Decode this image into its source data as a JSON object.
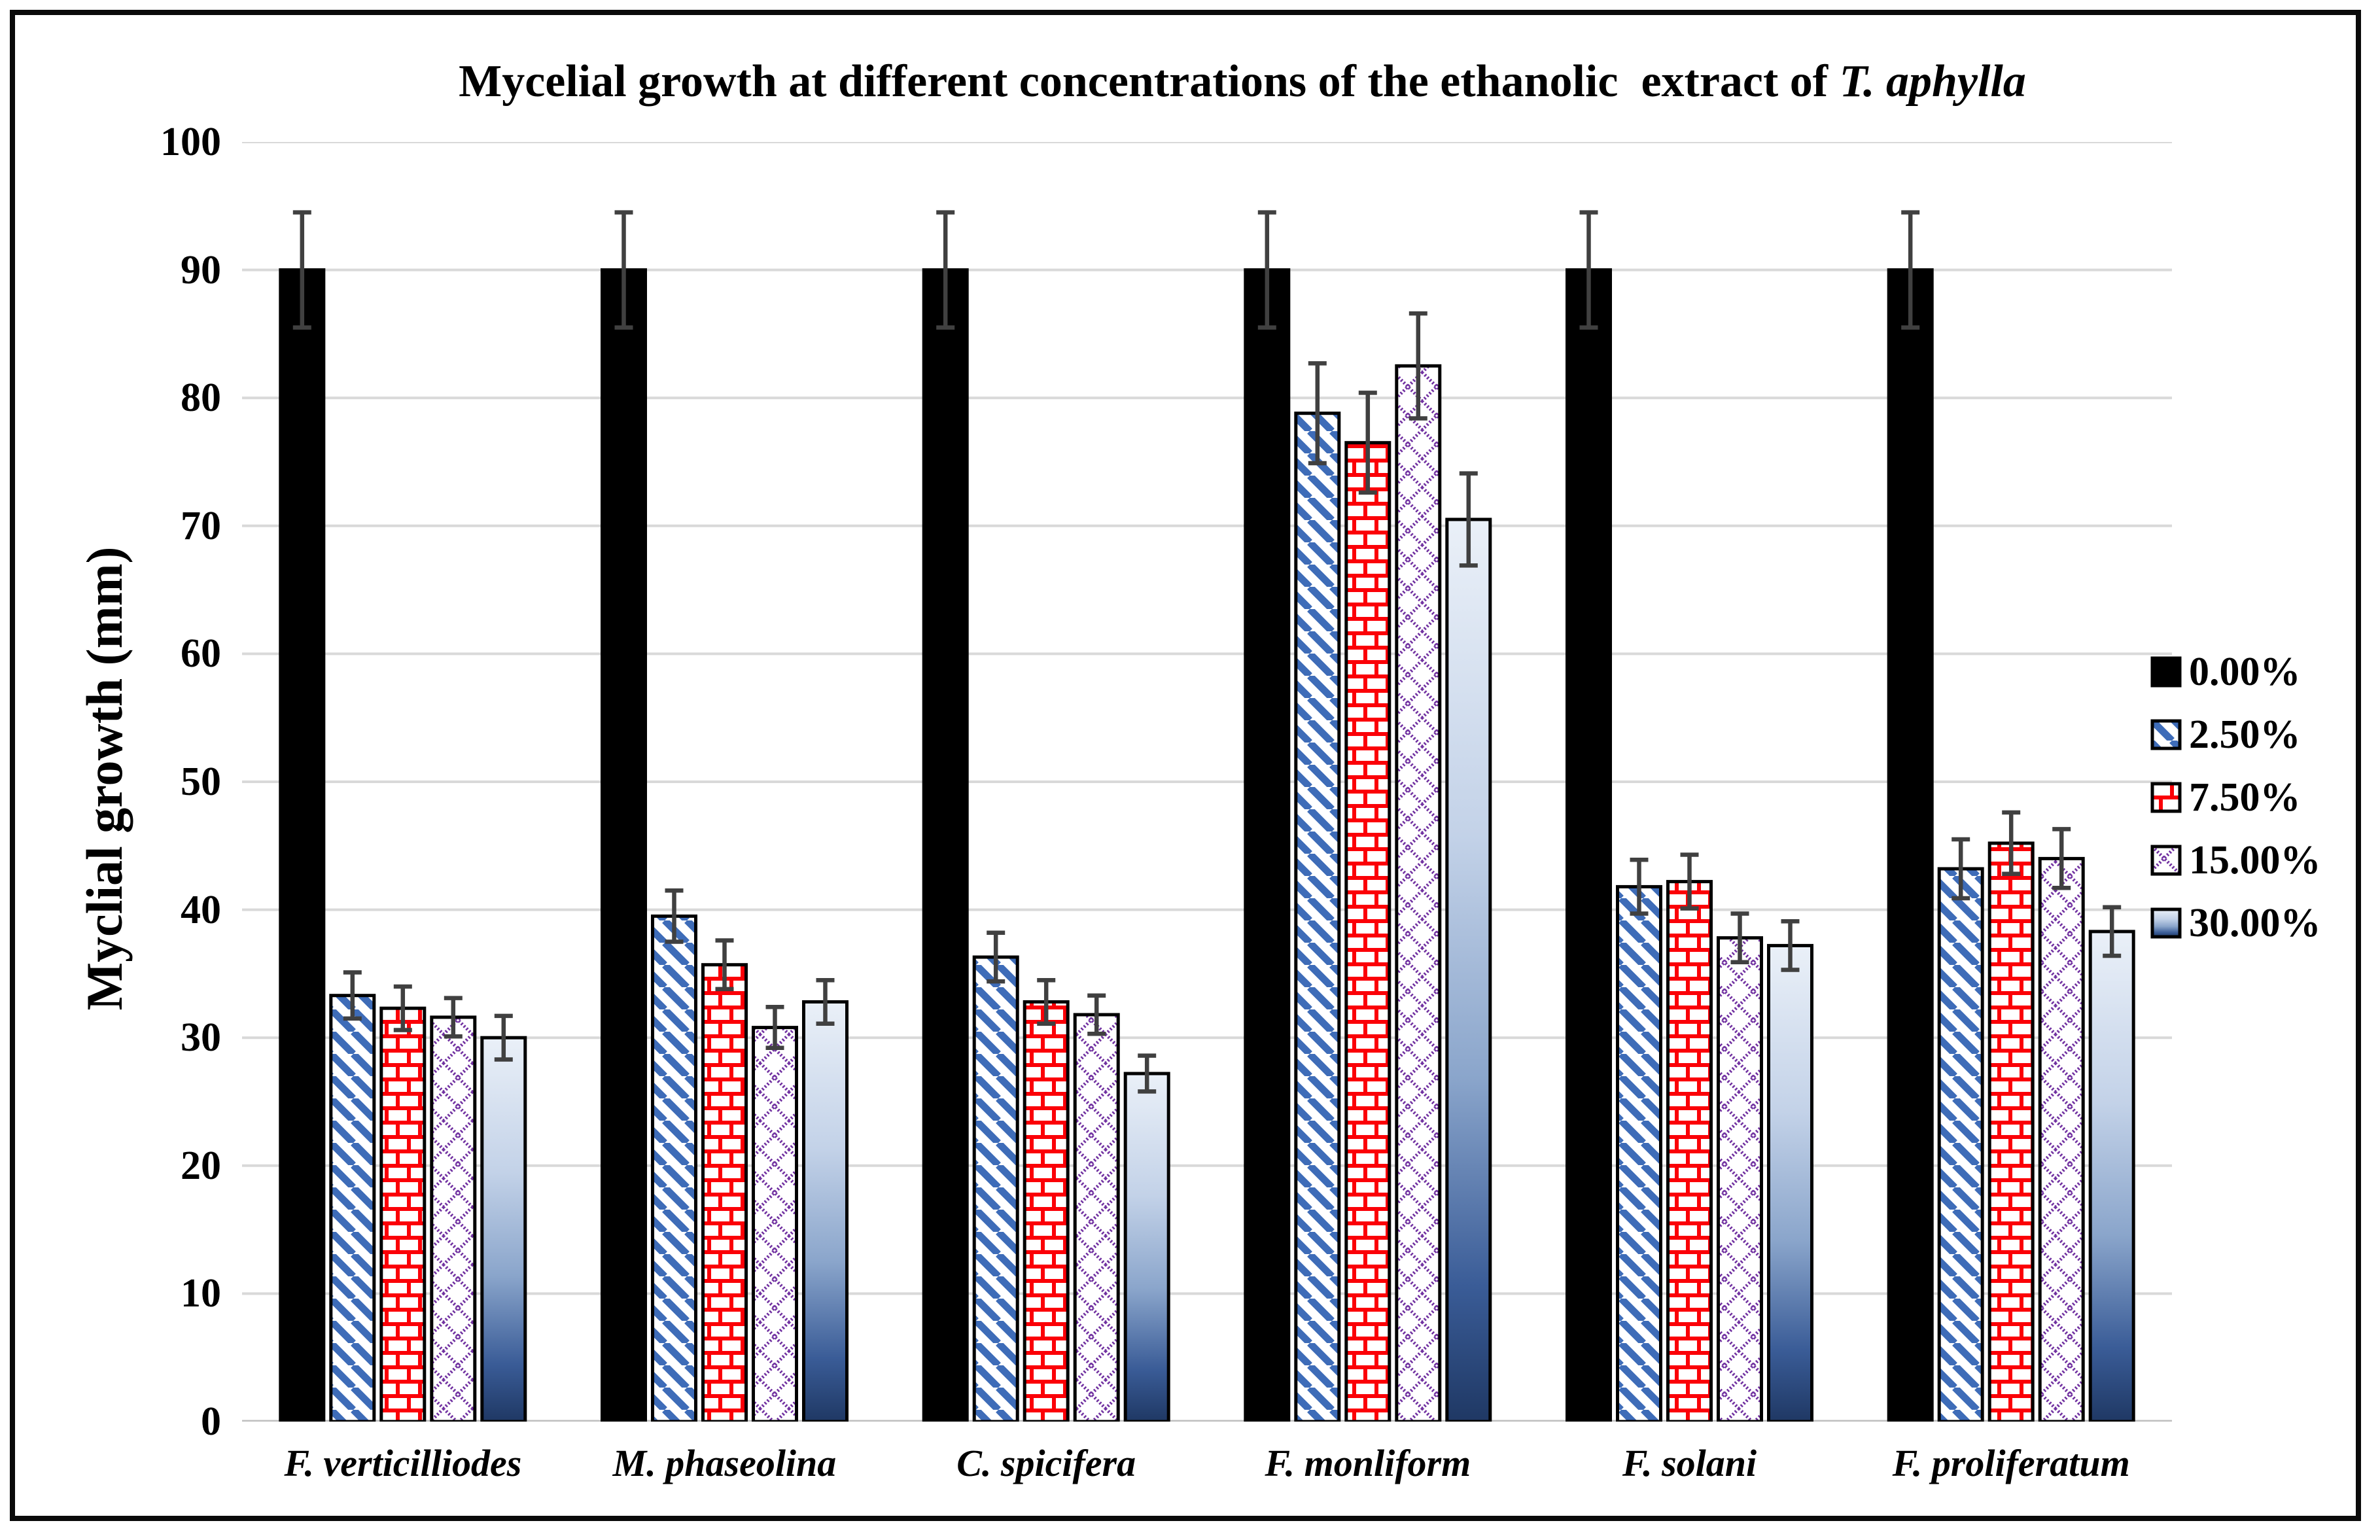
{
  "figure": {
    "title_main": "Mycelial growth at different concentrations of the ethanolic  extract of ",
    "title_species": "T. aphylla"
  },
  "chart_data": {
    "type": "bar",
    "title": "Mycelial growth at different concentrations of the ethanolic extract of T. aphylla",
    "xlabel": "",
    "ylabel": "Myclial growth (mm)",
    "ylim": [
      0,
      100
    ],
    "ytick_step": 10,
    "grid": "horizontal",
    "legend_position": "right",
    "error_bars": true,
    "categories": [
      "F. verticilliodes",
      "M. phaseolina",
      "C. spicifera",
      "F. monliform",
      "F. solani",
      "F. proliferatum"
    ],
    "series": [
      {
        "name": "0.00%",
        "pattern": "solid",
        "color": "#000000",
        "values": [
          90,
          90,
          90,
          90,
          90,
          90
        ],
        "errors": [
          4.5,
          4.5,
          4.5,
          4.5,
          4.5,
          4.5
        ]
      },
      {
        "name": "2.50%",
        "pattern": "stripes",
        "color": "#3E6CB8",
        "values": [
          33.3,
          39.5,
          36.3,
          78.8,
          41.8,
          43.2
        ],
        "errors": [
          1.8,
          2.0,
          1.9,
          3.9,
          2.1,
          2.3
        ]
      },
      {
        "name": "7.50%",
        "pattern": "brick",
        "color": "#FB0007",
        "values": [
          32.3,
          35.7,
          32.8,
          76.5,
          42.2,
          45.2
        ],
        "errors": [
          1.7,
          1.9,
          1.7,
          3.9,
          2.1,
          2.4
        ]
      },
      {
        "name": "15.00%",
        "pattern": "diamonds",
        "color": "#7030A0",
        "values": [
          31.6,
          30.8,
          31.8,
          82.5,
          37.8,
          44.0
        ],
        "errors": [
          1.5,
          1.6,
          1.5,
          4.1,
          1.9,
          2.3
        ]
      },
      {
        "name": "30.00%",
        "pattern": "gradient",
        "color": "#1F3864",
        "gradient": [
          "#EAF0F8",
          "#C3D2E8",
          "#8AA5CB",
          "#3A5C97",
          "#1F3864"
        ],
        "values": [
          30.0,
          32.8,
          27.2,
          70.5,
          37.2,
          38.3
        ],
        "errors": [
          1.7,
          1.7,
          1.4,
          3.6,
          1.9,
          1.9
        ]
      }
    ],
    "colors": {
      "gridline": "#D9D9D9",
      "axis_line": "#BFBFBF",
      "error_bar": "#404040",
      "bar_outline": "#000000",
      "background": "#FFFFFF"
    }
  }
}
